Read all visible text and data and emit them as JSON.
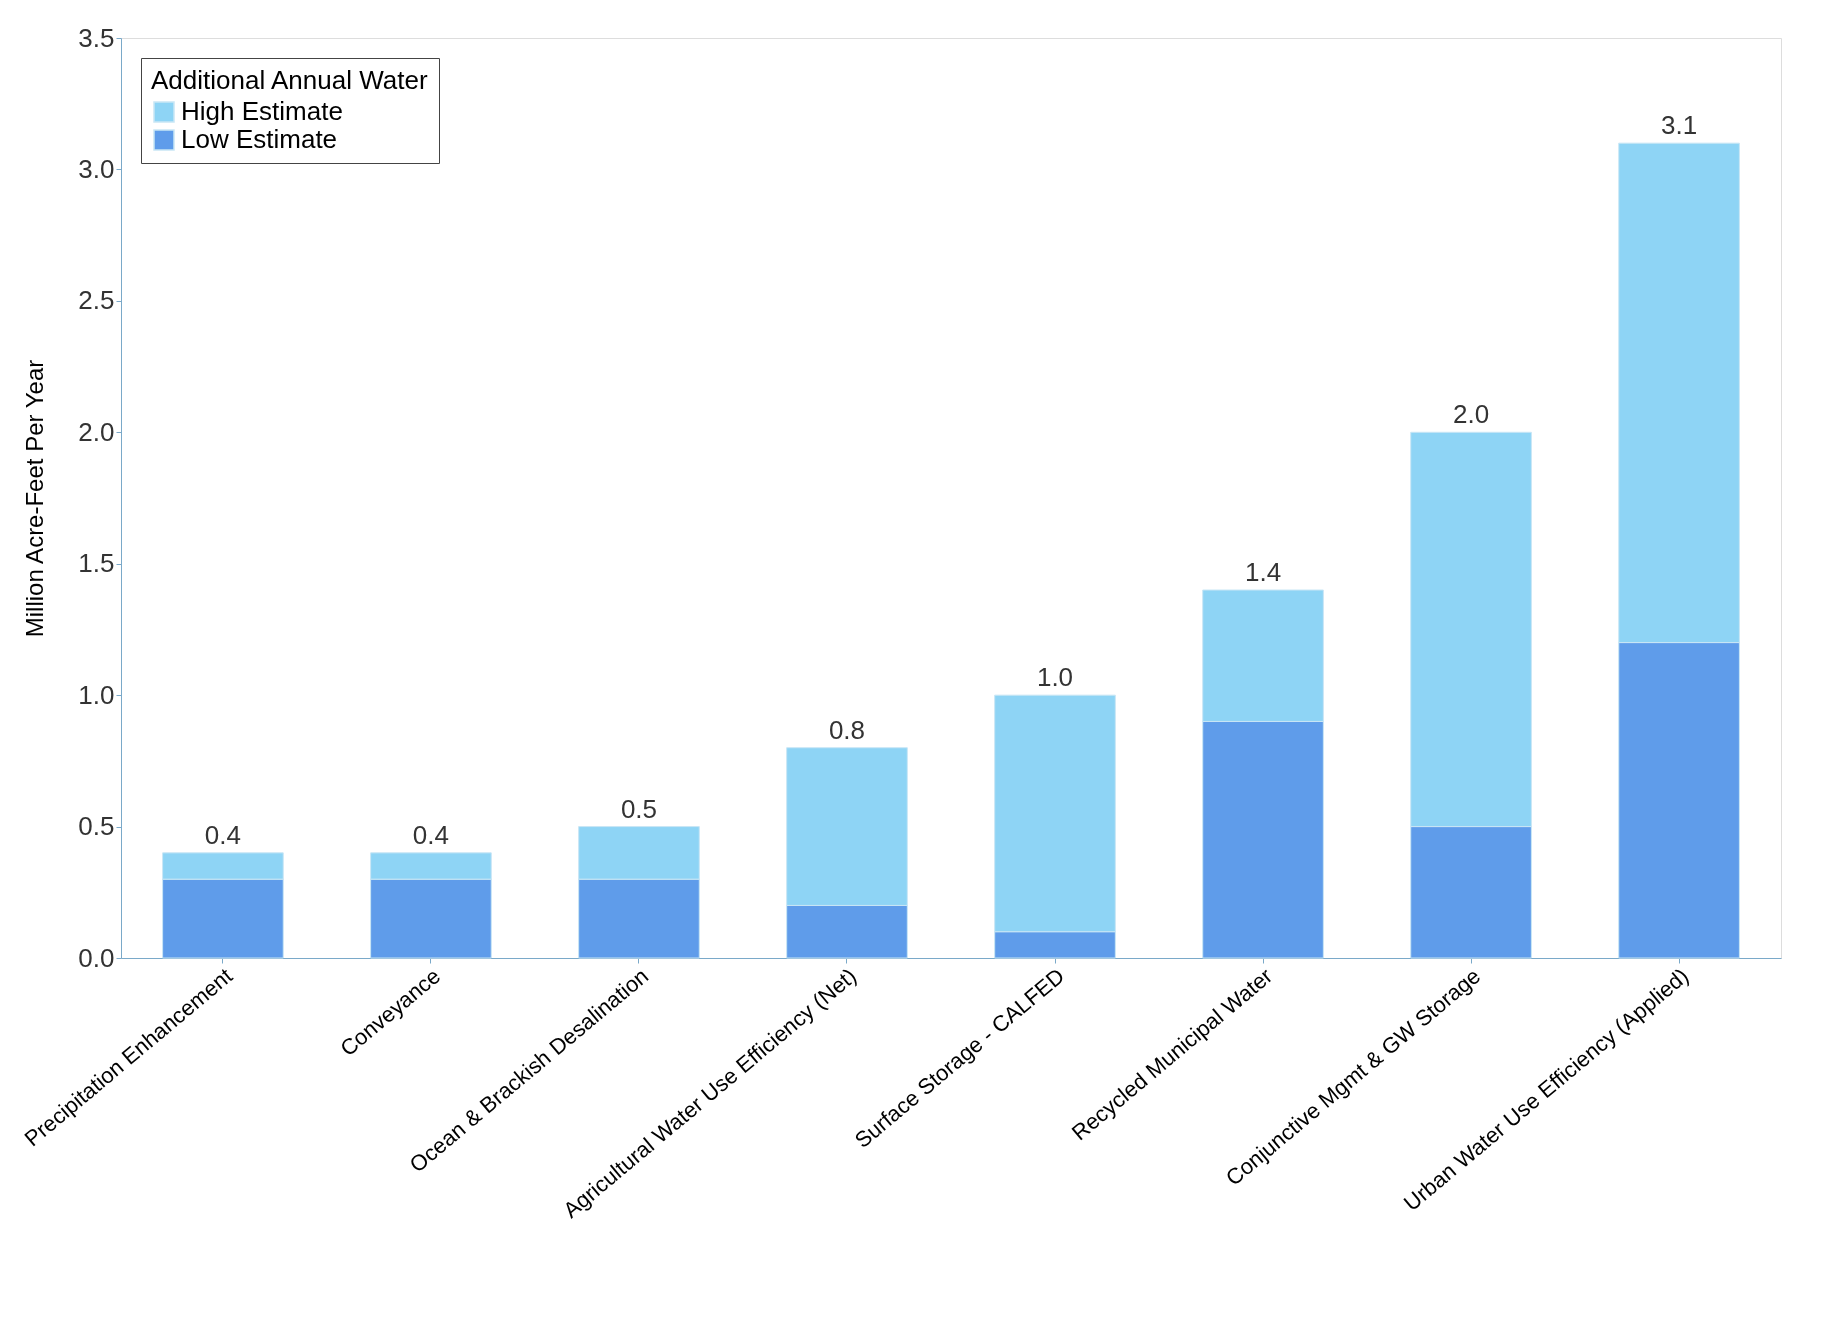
{
  "chart_data": {
    "type": "bar",
    "stacked": true,
    "ylabel": "Million Acre-Feet Per Year",
    "legend_title": "Additional Annual Water",
    "categories": [
      "Precipitation Enhancement",
      "Conveyance",
      "Ocean & Brackish Desalination",
      "Agricultural Water Use Efficiency (Net)",
      "Surface Storage - CALFED",
      "Recycled Municipal Water",
      "Conjunctive Mgmt & GW Storage",
      "Urban Water Use Efficiency (Applied)"
    ],
    "series": [
      {
        "name": "Low Estimate",
        "color": "#5f9cea",
        "values": [
          0.3,
          0.3,
          0.3,
          0.2,
          0.1,
          0.9,
          0.5,
          1.2
        ]
      },
      {
        "name": "High Estimate",
        "color": "#8ed4f5",
        "values": [
          0.1,
          0.1,
          0.2,
          0.6,
          0.9,
          0.5,
          1.5,
          1.9
        ]
      }
    ],
    "totals": [
      "0.4",
      "0.4",
      "0.5",
      "0.8",
      "1.0",
      "1.4",
      "2.0",
      "3.1"
    ],
    "ylim": [
      0,
      3.5
    ],
    "yticks": [
      {
        "value": 0,
        "label": "0.0"
      },
      {
        "value": 0.5,
        "label": "0.5"
      },
      {
        "value": 1,
        "label": "1.0"
      },
      {
        "value": 1.5,
        "label": "1.5"
      },
      {
        "value": 2,
        "label": "2.0"
      },
      {
        "value": 2.5,
        "label": "2.5"
      },
      {
        "value": 3,
        "label": "3.0"
      },
      {
        "value": 3.5,
        "label": "3.5"
      }
    ],
    "grid": false,
    "legend": "top left"
  }
}
